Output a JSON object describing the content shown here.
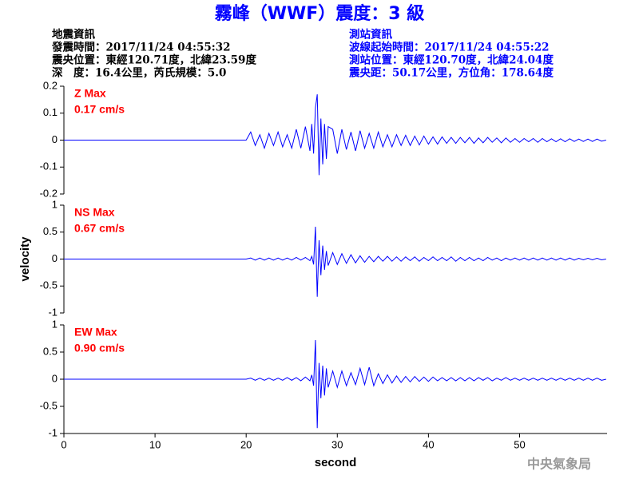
{
  "header": {
    "title": "霧峰（WWF）震度：3 級",
    "event": [
      "地震資訊",
      "發震時間：2017/11/24 04:55:32",
      "震央位置：東經120.71度，北緯23.59度",
      "深　度：16.4公里，芮氏規模：5.0"
    ],
    "station": [
      "測站資訊",
      "波線起始時間：2017/11/24 04:55:22",
      "測站位置：東經120.70度，北緯24.04度",
      "震央距：50.17公里，方位角：178.64度"
    ],
    "footer": "中央氣象局"
  },
  "chart_data": [
    {
      "type": "line",
      "label": "Z Max",
      "max_label": "0.17 cm/s",
      "color": "#0000ff",
      "label_color": "#ff0000",
      "xlim": [
        0,
        59.6
      ],
      "ylim": [
        -0.2,
        0.2
      ],
      "yticks": [
        -0.2,
        -0.1,
        0,
        0.1,
        0.2
      ],
      "x": [
        0,
        20,
        20.5,
        21,
        21.5,
        22,
        22.5,
        23,
        23.5,
        24,
        24.5,
        25,
        25.5,
        26,
        26.5,
        27,
        27.2,
        27.4,
        27.6,
        27.8,
        28,
        28.2,
        28.4,
        28.6,
        28.8,
        29,
        29.5,
        30,
        30.5,
        31,
        31.5,
        32,
        32.5,
        33,
        33.5,
        34,
        34.5,
        35,
        35.5,
        36,
        36.5,
        37,
        37.5,
        38,
        38.5,
        39,
        39.5,
        40,
        40.5,
        41,
        41.5,
        42,
        42.5,
        43,
        43.5,
        44,
        44.5,
        45,
        45.5,
        46,
        46.5,
        47,
        47.5,
        48,
        48.5,
        49,
        49.5,
        50,
        50.5,
        51,
        51.5,
        52,
        52.5,
        53,
        53.5,
        54,
        54.5,
        55,
        55.5,
        56,
        56.5,
        57,
        57.5,
        58,
        58.5,
        59,
        59.5
      ],
      "values": [
        0,
        0,
        0.03,
        -0.02,
        0.02,
        -0.03,
        0.025,
        -0.02,
        0.03,
        -0.025,
        0.02,
        -0.03,
        0.04,
        -0.03,
        0.05,
        -0.04,
        0.06,
        -0.05,
        0.12,
        0.17,
        -0.13,
        0.08,
        -0.09,
        0.06,
        -0.07,
        0.05,
        0.04,
        -0.05,
        0.04,
        -0.035,
        0.03,
        -0.04,
        0.035,
        -0.03,
        0.025,
        -0.03,
        0.03,
        -0.025,
        0.02,
        -0.025,
        0.02,
        -0.02,
        0.018,
        -0.02,
        0.015,
        -0.018,
        0.015,
        -0.015,
        0.012,
        -0.015,
        0.012,
        -0.012,
        0.01,
        -0.012,
        0.01,
        -0.01,
        0.01,
        -0.012,
        0.008,
        -0.01,
        0.01,
        -0.008,
        0.008,
        -0.01,
        0.008,
        -0.008,
        0.006,
        -0.008,
        0.006,
        -0.006,
        0.006,
        -0.008,
        0.006,
        -0.006,
        0.005,
        -0.006,
        0.005,
        -0.006,
        0.005,
        -0.005,
        0.004,
        -0.005,
        0.004,
        -0.005,
        0.004,
        -0.004,
        0
      ]
    },
    {
      "type": "line",
      "label": "NS Max",
      "max_label": "0.67 cm/s",
      "color": "#0000ff",
      "label_color": "#ff0000",
      "y_label": "velocity",
      "xlim": [
        0,
        59.6
      ],
      "ylim": [
        -1,
        1
      ],
      "yticks": [
        -1,
        -0.5,
        0,
        0.5,
        1
      ],
      "x": [
        0,
        20,
        20.5,
        21,
        21.5,
        22,
        22.5,
        23,
        23.5,
        24,
        24.5,
        25,
        25.5,
        26,
        26.5,
        27,
        27.2,
        27.4,
        27.6,
        27.8,
        28,
        28.2,
        28.4,
        28.6,
        28.8,
        29,
        29.5,
        30,
        30.5,
        31,
        31.5,
        32,
        32.5,
        33,
        33.5,
        34,
        34.5,
        35,
        35.5,
        36,
        36.5,
        37,
        37.5,
        38,
        38.5,
        39,
        39.5,
        40,
        40.5,
        41,
        41.5,
        42,
        42.5,
        43,
        43.5,
        44,
        44.5,
        45,
        45.5,
        46,
        46.5,
        47,
        47.5,
        48,
        48.5,
        49,
        49.5,
        50,
        50.5,
        51,
        51.5,
        52,
        52.5,
        53,
        53.5,
        54,
        54.5,
        55,
        55.5,
        56,
        56.5,
        57,
        57.5,
        58,
        58.5,
        59,
        59.5
      ],
      "values": [
        0,
        0,
        0.02,
        -0.02,
        0.02,
        -0.02,
        0.02,
        -0.02,
        0.02,
        -0.02,
        0.02,
        -0.02,
        0.03,
        -0.02,
        0.03,
        -0.03,
        0.05,
        -0.1,
        0.6,
        -0.7,
        0.35,
        -0.3,
        0.25,
        -0.2,
        0.15,
        -0.12,
        0.12,
        -0.1,
        0.1,
        -0.08,
        0.08,
        -0.07,
        0.06,
        -0.06,
        0.05,
        -0.05,
        0.05,
        -0.04,
        0.05,
        -0.04,
        0.04,
        -0.04,
        0.04,
        -0.03,
        0.04,
        -0.04,
        0.03,
        -0.03,
        0.04,
        -0.03,
        0.03,
        -0.03,
        0.04,
        -0.04,
        0.03,
        -0.03,
        0.03,
        -0.03,
        0.02,
        -0.03,
        0.03,
        -0.02,
        0.02,
        -0.03,
        0.02,
        -0.02,
        0.02,
        -0.02,
        0.02,
        -0.02,
        0.02,
        -0.02,
        0.02,
        -0.02,
        0.02,
        -0.02,
        0.02,
        -0.02,
        0.02,
        -0.02,
        0.015,
        -0.015,
        0.015,
        -0.015,
        0.015,
        -0.015,
        0
      ]
    },
    {
      "type": "line",
      "label": "EW Max",
      "max_label": "0.90 cm/s",
      "color": "#0000ff",
      "label_color": "#ff0000",
      "x_label": "second",
      "xlim": [
        0,
        59.6
      ],
      "ylim": [
        -1,
        1
      ],
      "yticks": [
        -1,
        -0.5,
        0,
        0.5,
        1
      ],
      "xticks": [
        0,
        10,
        20,
        30,
        40,
        50
      ],
      "x": [
        0,
        20,
        20.5,
        21,
        21.5,
        22,
        22.5,
        23,
        23.5,
        24,
        24.5,
        25,
        25.5,
        26,
        26.5,
        27,
        27.2,
        27.4,
        27.6,
        27.8,
        28,
        28.2,
        28.4,
        28.6,
        28.8,
        29,
        29.5,
        30,
        30.5,
        31,
        31.5,
        32,
        32.5,
        33,
        33.5,
        34,
        34.5,
        35,
        35.5,
        36,
        36.5,
        37,
        37.5,
        38,
        38.5,
        39,
        39.5,
        40,
        40.5,
        41,
        41.5,
        42,
        42.5,
        43,
        43.5,
        44,
        44.5,
        45,
        45.5,
        46,
        46.5,
        47,
        47.5,
        48,
        48.5,
        49,
        49.5,
        50,
        50.5,
        51,
        51.5,
        52,
        52.5,
        53,
        53.5,
        54,
        54.5,
        55,
        55.5,
        56,
        56.5,
        57,
        57.5,
        58,
        58.5,
        59,
        59.5
      ],
      "values": [
        0,
        0,
        0.02,
        -0.02,
        0.02,
        -0.02,
        0.02,
        -0.02,
        0.02,
        -0.02,
        0.03,
        -0.02,
        0.03,
        -0.03,
        0.04,
        -0.03,
        0.08,
        -0.12,
        0.72,
        -0.9,
        0.3,
        -0.35,
        0.25,
        -0.3,
        0.2,
        -0.15,
        0.15,
        -0.15,
        0.15,
        -0.12,
        0.12,
        -0.1,
        0.2,
        -0.1,
        0.22,
        -0.12,
        0.1,
        -0.08,
        0.08,
        -0.07,
        0.06,
        -0.06,
        0.05,
        -0.05,
        0.05,
        -0.04,
        0.04,
        -0.04,
        0.04,
        -0.03,
        0.03,
        -0.03,
        0.03,
        -0.03,
        0.03,
        -0.03,
        0.03,
        -0.03,
        0.03,
        -0.02,
        0.03,
        -0.03,
        0.02,
        -0.02,
        0.03,
        -0.02,
        0.02,
        -0.02,
        0.02,
        -0.02,
        0.02,
        -0.02,
        0.02,
        -0.02,
        0.02,
        -0.02,
        0.02,
        -0.02,
        0.02,
        -0.02,
        0.02,
        -0.02,
        0.02,
        -0.02,
        0.02,
        -0.02,
        0
      ]
    }
  ]
}
